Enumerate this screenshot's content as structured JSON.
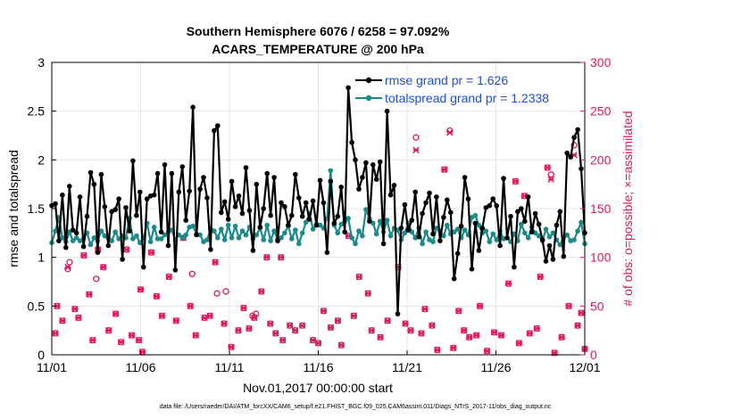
{
  "chart_data": {
    "type": "line",
    "title_line1": "Southern Hemisphere 6076 / 6258 = 97.092%",
    "title_line2": "ACARS_TEMPERATURE @ 200 hPa",
    "xlabel": "Nov.01,2017 00:00:00 start",
    "ylabel_left": "rmse and totalspread",
    "ylabel_right": "# of obs: o=possible; ×=assimilated",
    "footer": "data file: /Users/raeder/DAI/ATM_forcXX/CAM6_setup/f.e21.FHIST_BGC.f09_025.CAM6assim.011/Diags_NTrS_2017-11/obs_diag_output.nc",
    "x_ticks": [
      {
        "day": 0,
        "label": "11/01"
      },
      {
        "day": 5,
        "label": "11/06"
      },
      {
        "day": 10,
        "label": "11/11"
      },
      {
        "day": 15,
        "label": "11/16"
      },
      {
        "day": 20,
        "label": "11/21"
      },
      {
        "day": 25,
        "label": "11/26"
      },
      {
        "day": 30,
        "label": "12/01"
      }
    ],
    "xlim": [
      0,
      30
    ],
    "ylim_left": [
      0,
      3
    ],
    "y_ticks_left": [
      "0",
      "0.5",
      "1",
      "1.5",
      "2",
      "2.5",
      "3"
    ],
    "ylim_right": [
      0,
      300
    ],
    "y_ticks_right": [
      "0",
      "50",
      "100",
      "150",
      "200",
      "250",
      "300"
    ],
    "colors": {
      "rmse": "#000000",
      "spread": "#1a8a8a",
      "obs": "#d81b60",
      "legend_text": "#1f4fd6",
      "grid": "#e6e6e6"
    },
    "series": [
      {
        "name": "rmse grand pr = 1.626",
        "key": "rmse",
        "values": [
          1.53,
          1.55,
          1.17,
          1.64,
          1.1,
          1.73,
          1.28,
          1.25,
          1.62,
          1.11,
          1.42,
          1.87,
          1.75,
          1.05,
          1.85,
          1.52,
          1.12,
          1.47,
          1.49,
          1.6,
          0.98,
          1.51,
          1.27,
          1.99,
          1.43,
          1.67,
          0.9,
          1.6,
          1.63,
          1.64,
          1.86,
          1.26,
          1.95,
          1.12,
          1.86,
          0.87,
          1.67,
          1.93,
          1.38,
          1.68,
          2.54,
          1.23,
          1.7,
          1.82,
          1.61,
          1.08,
          2.3,
          2.35,
          1.46,
          1.57,
          1.39,
          1.78,
          1.52,
          1.63,
          1.45,
          1.92,
          1.48,
          1.07,
          1.75,
          1.31,
          1.5,
          1.86,
          1.43,
          1.82,
          1.17,
          1.56,
          1.52,
          1.33,
          1.43,
          1.85,
          1.61,
          1.42,
          1.56,
          1.39,
          1.58,
          1.33,
          1.79,
          1.56,
          1.05,
          1.78,
          1.35,
          1.42,
          1.72,
          1.26,
          2.74,
          2.18,
          2.0,
          1.7,
          1.82,
          1.97,
          1.37,
          1.95,
          1.8,
          1.98,
          1.14,
          2.5,
          1.64,
          1.74,
          0.42,
          1.3,
          1.54,
          1.28,
          1.38,
          1.67,
          1.21,
          1.45,
          1.56,
          1.66,
          1.24,
          1.62,
          1.17,
          1.41,
          1.59,
          1.46,
          0.78,
          1.04,
          1.32,
          1.82,
          1.6,
          0.88,
          1.35,
          1.07,
          1.3,
          1.51,
          1.53,
          1.6,
          1.53,
          1.12,
          1.81,
          1.2,
          1.42,
          0.9,
          1.47,
          1.5,
          1.37,
          1.62,
          1.26,
          1.45,
          1.34,
          1.18,
          0.96,
          1.12,
          0.98,
          1.33,
          1.47,
          1.01,
          2.07,
          2.03,
          2.23,
          2.31,
          1.91,
          1.25
        ]
      },
      {
        "name": "totalspread grand pr = 1.2338",
        "key": "spread",
        "values": [
          1.15,
          1.27,
          1.41,
          1.2,
          1.16,
          1.26,
          1.17,
          1.2,
          1.17,
          1.19,
          1.25,
          1.13,
          1.2,
          1.17,
          1.27,
          1.22,
          1.2,
          1.17,
          1.26,
          1.19,
          1.22,
          1.2,
          1.4,
          1.19,
          1.22,
          1.15,
          1.2,
          1.35,
          1.16,
          1.31,
          1.19,
          1.19,
          1.23,
          1.26,
          1.28,
          1.18,
          1.23,
          1.2,
          1.23,
          1.31,
          1.32,
          1.24,
          1.23,
          1.16,
          1.18,
          1.29,
          1.27,
          1.2,
          1.29,
          1.18,
          1.33,
          1.2,
          1.32,
          1.2,
          1.27,
          1.23,
          1.31,
          1.19,
          1.23,
          1.3,
          1.18,
          1.33,
          1.17,
          1.27,
          1.19,
          1.2,
          1.25,
          1.32,
          1.19,
          1.28,
          1.14,
          1.25,
          1.36,
          1.45,
          1.29,
          1.34,
          1.33,
          1.3,
          1.4,
          1.89,
          1.33,
          1.25,
          1.34,
          1.37,
          1.4,
          1.2,
          1.14,
          1.27,
          1.22,
          1.49,
          1.4,
          1.35,
          1.24,
          1.37,
          1.26,
          1.38,
          1.22,
          1.3,
          1.28,
          1.18,
          1.25,
          1.35,
          1.26,
          1.2,
          1.3,
          1.14,
          1.26,
          1.18,
          1.16,
          1.3,
          1.27,
          1.22,
          1.33,
          1.24,
          1.26,
          1.29,
          1.2,
          1.28,
          1.23,
          1.41,
          1.43,
          1.33,
          1.25,
          1.27,
          1.16,
          1.24,
          1.18,
          1.27,
          1.19,
          1.2,
          1.16,
          1.24,
          1.17,
          1.34,
          1.25,
          1.2,
          1.31,
          1.25,
          1.22,
          1.17,
          1.29,
          1.21,
          1.25,
          1.18,
          1.13,
          1.2,
          1.23,
          1.17,
          1.18,
          1.27,
          1.36,
          1.14
        ]
      }
    ],
    "obs_possible": [
      [
        0.2,
        22
      ],
      [
        0.3,
        50
      ],
      [
        0.6,
        35
      ],
      [
        0.9,
        88
      ],
      [
        1.0,
        95
      ],
      [
        1.3,
        47
      ],
      [
        1.5,
        38
      ],
      [
        1.8,
        102
      ],
      [
        2.1,
        62
      ],
      [
        2.3,
        15
      ],
      [
        2.5,
        78
      ],
      [
        2.6,
        108
      ],
      [
        2.9,
        90
      ],
      [
        3.2,
        25
      ],
      [
        3.6,
        42
      ],
      [
        3.9,
        13
      ],
      [
        4.2,
        108
      ],
      [
        4.5,
        20
      ],
      [
        4.9,
        15
      ],
      [
        5.0,
        67
      ],
      [
        5.1,
        3
      ],
      [
        5.6,
        105
      ],
      [
        5.9,
        60
      ],
      [
        6.2,
        40
      ],
      [
        6.6,
        80
      ],
      [
        7.0,
        35
      ],
      [
        7.4,
        120
      ],
      [
        7.8,
        50
      ],
      [
        7.9,
        83
      ],
      [
        8.1,
        20
      ],
      [
        8.6,
        38
      ],
      [
        8.9,
        40
      ],
      [
        9.2,
        95
      ],
      [
        9.3,
        63
      ],
      [
        9.7,
        32
      ],
      [
        9.8,
        65
      ],
      [
        10.1,
        8
      ],
      [
        10.5,
        25
      ],
      [
        10.8,
        48
      ],
      [
        11.1,
        27
      ],
      [
        11.3,
        40
      ],
      [
        11.4,
        38
      ],
      [
        11.5,
        42
      ],
      [
        11.8,
        65
      ],
      [
        12.1,
        100
      ],
      [
        12.3,
        32
      ],
      [
        12.6,
        22
      ],
      [
        12.9,
        100
      ],
      [
        13.0,
        15
      ],
      [
        13.4,
        30
      ],
      [
        13.7,
        25
      ],
      [
        14.1,
        30
      ],
      [
        14.7,
        15
      ],
      [
        15.0,
        12
      ],
      [
        15.3,
        45
      ],
      [
        15.7,
        28
      ],
      [
        16.1,
        35
      ],
      [
        16.3,
        10
      ],
      [
        16.7,
        122
      ],
      [
        17.0,
        40
      ],
      [
        17.3,
        80
      ],
      [
        17.8,
        63
      ],
      [
        18.0,
        25
      ],
      [
        18.5,
        18
      ],
      [
        18.9,
        35
      ],
      [
        19.5,
        90
      ],
      [
        19.9,
        32
      ],
      [
        20.2,
        25
      ],
      [
        20.5,
        223
      ],
      [
        20.8,
        22
      ],
      [
        21.0,
        47
      ],
      [
        21.4,
        30
      ],
      [
        21.7,
        5
      ],
      [
        22.1,
        190
      ],
      [
        22.4,
        230
      ],
      [
        22.6,
        7
      ],
      [
        22.9,
        45
      ],
      [
        23.2,
        25
      ],
      [
        23.5,
        18
      ],
      [
        23.9,
        20
      ],
      [
        24.1,
        50
      ],
      [
        24.5,
        4
      ],
      [
        24.9,
        23
      ],
      [
        25.3,
        20
      ],
      [
        25.7,
        73
      ],
      [
        26.1,
        178
      ],
      [
        26.3,
        12
      ],
      [
        26.6,
        163
      ],
      [
        26.9,
        22
      ],
      [
        27.3,
        27
      ],
      [
        27.5,
        80
      ],
      [
        27.9,
        192
      ],
      [
        28.1,
        185
      ],
      [
        28.3,
        2
      ],
      [
        28.7,
        18
      ],
      [
        29.1,
        50
      ],
      [
        29.4,
        215
      ],
      [
        29.6,
        30
      ],
      [
        29.8,
        43
      ],
      [
        30.0,
        6
      ]
    ],
    "obs_assimilated": [
      [
        0.2,
        22
      ],
      [
        0.3,
        50
      ],
      [
        0.6,
        35
      ],
      [
        0.9,
        90
      ],
      [
        1.3,
        47
      ],
      [
        1.5,
        38
      ],
      [
        1.8,
        102
      ],
      [
        2.1,
        62
      ],
      [
        2.3,
        15
      ],
      [
        2.6,
        108
      ],
      [
        2.9,
        90
      ],
      [
        3.2,
        25
      ],
      [
        3.6,
        42
      ],
      [
        3.9,
        13
      ],
      [
        4.2,
        108
      ],
      [
        4.5,
        20
      ],
      [
        4.9,
        15
      ],
      [
        5.0,
        67
      ],
      [
        5.1,
        3
      ],
      [
        5.6,
        105
      ],
      [
        5.9,
        60
      ],
      [
        6.2,
        40
      ],
      [
        6.6,
        80
      ],
      [
        7.0,
        35
      ],
      [
        7.4,
        120
      ],
      [
        7.8,
        50
      ],
      [
        8.1,
        20
      ],
      [
        8.6,
        38
      ],
      [
        8.9,
        40
      ],
      [
        9.2,
        95
      ],
      [
        9.7,
        32
      ],
      [
        10.1,
        8
      ],
      [
        10.5,
        25
      ],
      [
        10.8,
        48
      ],
      [
        11.1,
        27
      ],
      [
        11.4,
        38
      ],
      [
        11.8,
        65
      ],
      [
        12.1,
        100
      ],
      [
        12.3,
        32
      ],
      [
        12.6,
        22
      ],
      [
        12.9,
        100
      ],
      [
        13.0,
        15
      ],
      [
        13.4,
        30
      ],
      [
        13.7,
        25
      ],
      [
        14.1,
        30
      ],
      [
        14.7,
        15
      ],
      [
        15.0,
        12
      ],
      [
        15.3,
        45
      ],
      [
        15.7,
        28
      ],
      [
        16.1,
        35
      ],
      [
        16.3,
        10
      ],
      [
        16.7,
        122
      ],
      [
        17.0,
        40
      ],
      [
        17.3,
        80
      ],
      [
        17.8,
        63
      ],
      [
        18.0,
        25
      ],
      [
        18.5,
        18
      ],
      [
        18.9,
        35
      ],
      [
        19.5,
        90
      ],
      [
        19.9,
        32
      ],
      [
        20.2,
        25
      ],
      [
        20.5,
        210
      ],
      [
        20.8,
        22
      ],
      [
        21.0,
        47
      ],
      [
        21.4,
        30
      ],
      [
        21.7,
        5
      ],
      [
        22.1,
        190
      ],
      [
        22.4,
        228
      ],
      [
        22.6,
        7
      ],
      [
        22.9,
        45
      ],
      [
        23.2,
        25
      ],
      [
        23.5,
        18
      ],
      [
        23.9,
        20
      ],
      [
        24.1,
        50
      ],
      [
        24.5,
        4
      ],
      [
        24.9,
        23
      ],
      [
        25.3,
        20
      ],
      [
        25.7,
        73
      ],
      [
        26.1,
        178
      ],
      [
        26.3,
        12
      ],
      [
        26.6,
        163
      ],
      [
        26.9,
        22
      ],
      [
        27.3,
        27
      ],
      [
        27.5,
        80
      ],
      [
        27.9,
        192
      ],
      [
        28.1,
        180
      ],
      [
        28.3,
        2
      ],
      [
        28.7,
        18
      ],
      [
        29.1,
        50
      ],
      [
        29.4,
        205
      ],
      [
        29.6,
        30
      ],
      [
        29.8,
        43
      ],
      [
        30.0,
        6
      ]
    ]
  }
}
